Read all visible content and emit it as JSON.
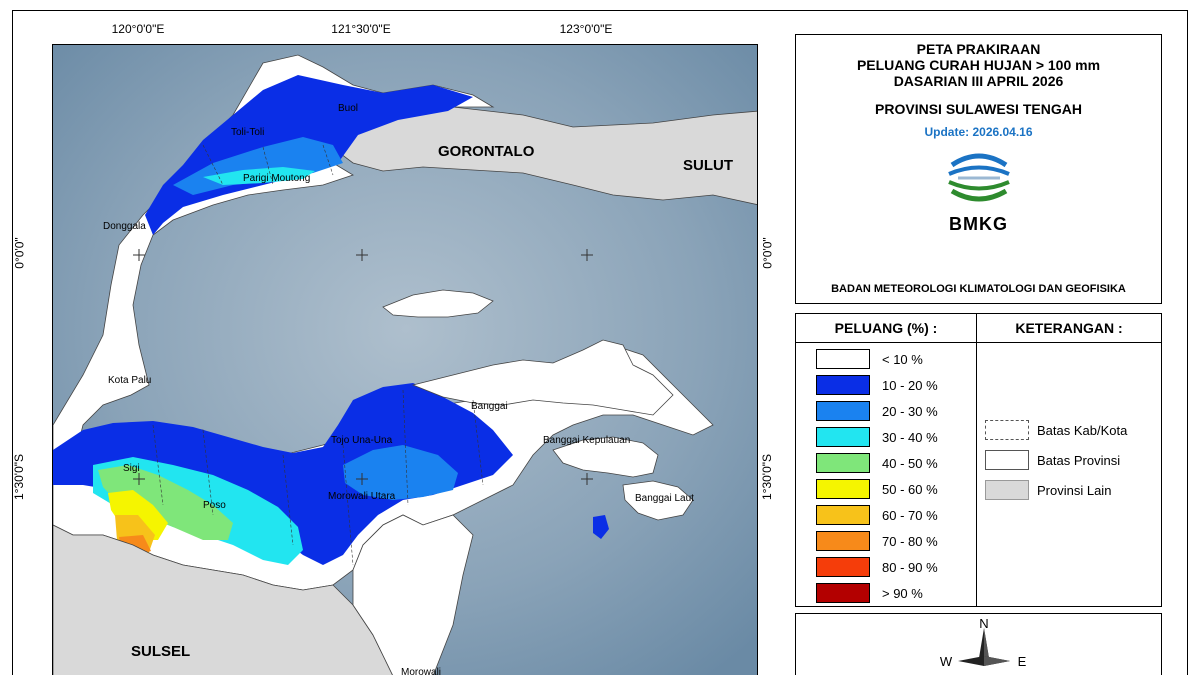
{
  "map": {
    "ticks_lon": [
      "120°0'0\"E",
      "121°30'0\"E",
      "123°0'0\"E"
    ],
    "ticks_lat": [
      "0°0'0\"",
      "1°30'0\"S"
    ],
    "places_big": [
      "GORONTALO",
      "SULUT",
      "SULSEL"
    ],
    "places_small": [
      "Toli-Toli",
      "Buol",
      "Parigi Moutong",
      "Donggala",
      "Kota Palu",
      "Sigi",
      "Poso",
      "Tojo Una-Una",
      "Morowali Utara",
      "Banggai",
      "Banggai Kepulauan",
      "Banggai Laut",
      "Morowali"
    ]
  },
  "title": {
    "line1": "PETA PRAKIRAAN",
    "line2": "PELUANG CURAH HUJAN > 100 mm",
    "line3": "DASARIAN III APRIL 2026",
    "province": "PROVINSI SULAWESI TENGAH",
    "update": "Update: 2026.04.16",
    "logo_text": "BMKG",
    "agency": "BADAN METEOROLOGI KLIMATOLOGI DAN GEOFISIKA"
  },
  "legend": {
    "heading": "PELUANG (%) :",
    "items": [
      {
        "label": "< 10 %",
        "color": "#ffffff"
      },
      {
        "label": "10 - 20 %",
        "color": "#0a2ee6"
      },
      {
        "label": "20 - 30 %",
        "color": "#1a82f0"
      },
      {
        "label": "30 - 40 %",
        "color": "#22e5f0"
      },
      {
        "label": "40 - 50 %",
        "color": "#7fe67a"
      },
      {
        "label": "50 - 60 %",
        "color": "#f5f500"
      },
      {
        "label": "60 - 70 %",
        "color": "#f7c21a"
      },
      {
        "label": "70 - 80 %",
        "color": "#f78a1a"
      },
      {
        "label": "80 - 90 %",
        "color": "#f53d0a"
      },
      {
        "label": "> 90 %",
        "color": "#b30000"
      }
    ]
  },
  "keterangan": {
    "heading": "KETERANGAN :",
    "items": [
      {
        "label": "Batas Kab/Kota"
      },
      {
        "label": "Batas Provinsi"
      },
      {
        "label": "Provinsi Lain"
      }
    ]
  },
  "compass": {
    "n": "N",
    "w": "W",
    "e": "E"
  }
}
